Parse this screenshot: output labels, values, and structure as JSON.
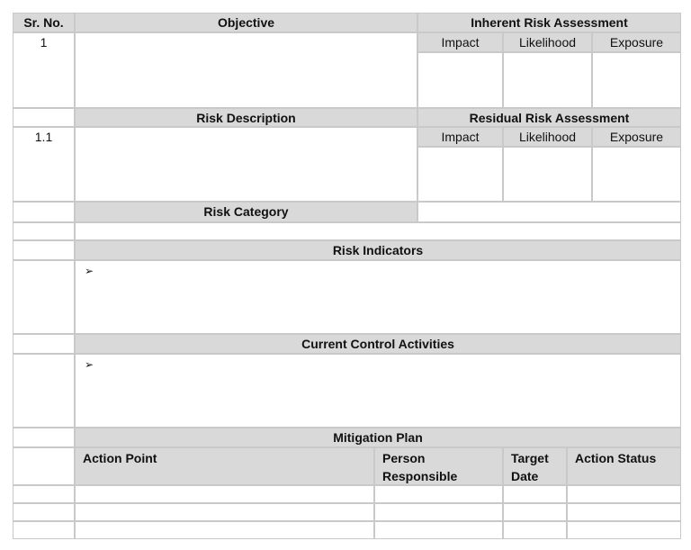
{
  "headers": {
    "sr_no": "Sr. No.",
    "objective": "Objective",
    "inherent": "Inherent Risk Assessment",
    "residual": "Residual Risk Assessment",
    "risk_description": "Risk Description",
    "risk_category": "Risk Category",
    "risk_indicators": "Risk Indicators",
    "current_controls": "Current Control Activities",
    "mitigation_plan": "Mitigation Plan"
  },
  "assessment_cols": [
    "Impact",
    "Likelihood",
    "Exposure"
  ],
  "rows": {
    "objective_no": "1",
    "risk_no": "1.1"
  },
  "bullet": "➢",
  "mitigation_cols": [
    "Action Point",
    "Person Responsible",
    "Target Date",
    "Action Status"
  ]
}
